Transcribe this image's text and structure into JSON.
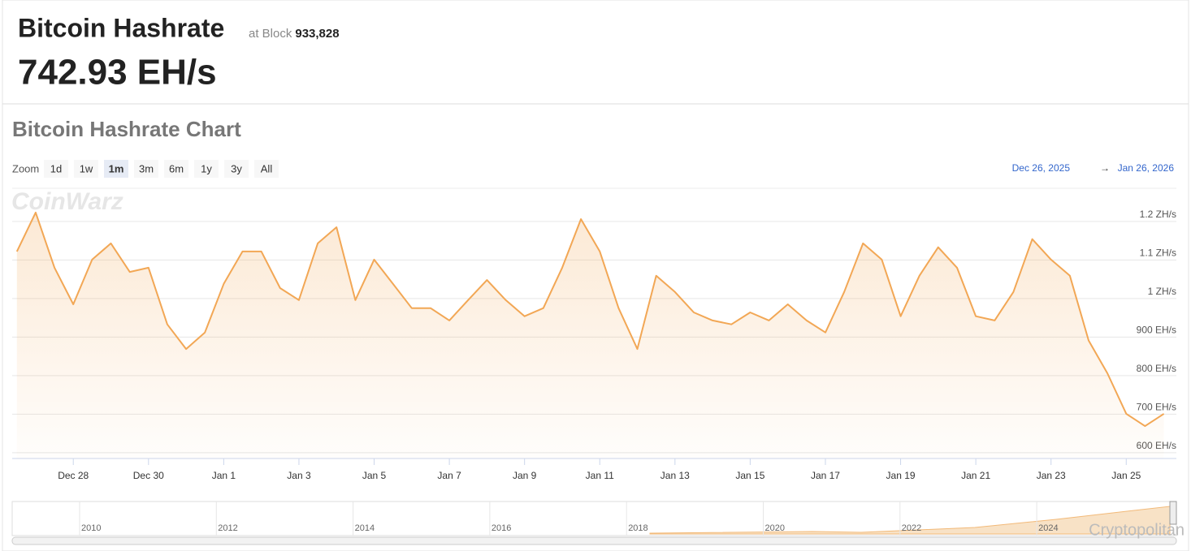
{
  "header": {
    "title": "Bitcoin Hashrate",
    "block_prefix": "at Block",
    "block": "933,828",
    "current": "742.93 EH/s"
  },
  "controls": {
    "zoom_label": "Zoom",
    "zoom_options": [
      "1d",
      "1w",
      "1m",
      "3m",
      "6m",
      "1y",
      "3y",
      "All"
    ],
    "selected": "1m",
    "range_from": "Dec 26, 2025",
    "range_arrow": "→",
    "range_to": "Jan 26, 2026"
  },
  "watermarks": {
    "logo": "CoinWarz",
    "credit": "Cryptopolitan"
  },
  "navigator": {
    "labels": [
      "2010",
      "2012",
      "2014",
      "2016",
      "2018",
      "2020",
      "2022",
      "2024"
    ]
  },
  "chart_data": {
    "type": "area",
    "title": "Bitcoin Hashrate Chart",
    "color": "#f2a755",
    "grid": true,
    "x": [
      "2025-12-26T12:00",
      "2025-12-27T00:00",
      "2025-12-27T12:00",
      "2025-12-28T00:00",
      "2025-12-28T12:00",
      "2025-12-29T00:00",
      "2025-12-29T12:00",
      "2025-12-30T00:00",
      "2025-12-30T12:00",
      "2025-12-31T00:00",
      "2025-12-31T12:00",
      "2026-01-01T00:00",
      "2026-01-01T12:00",
      "2026-01-02T00:00",
      "2026-01-02T12:00",
      "2026-01-03T00:00",
      "2026-01-03T12:00",
      "2026-01-04T00:00",
      "2026-01-04T12:00",
      "2026-01-05T00:00",
      "2026-01-05T12:00",
      "2026-01-06T00:00",
      "2026-01-06T12:00",
      "2026-01-07T00:00",
      "2026-01-07T12:00",
      "2026-01-08T00:00",
      "2026-01-08T12:00",
      "2026-01-09T00:00",
      "2026-01-09T12:00",
      "2026-01-10T00:00",
      "2026-01-10T12:00",
      "2026-01-11T00:00",
      "2026-01-11T12:00",
      "2026-01-12T00:00",
      "2026-01-12T12:00",
      "2026-01-13T00:00",
      "2026-01-13T12:00",
      "2026-01-14T00:00",
      "2026-01-14T12:00",
      "2026-01-15T00:00",
      "2026-01-15T12:00",
      "2026-01-16T00:00",
      "2026-01-16T12:00",
      "2026-01-17T00:00",
      "2026-01-17T12:00",
      "2026-01-18T00:00",
      "2026-01-18T12:00",
      "2026-01-19T00:00",
      "2026-01-19T12:00",
      "2026-01-20T00:00",
      "2026-01-20T12:00",
      "2026-01-21T00:00",
      "2026-01-21T12:00",
      "2026-01-22T00:00",
      "2026-01-22T12:00",
      "2026-01-23T00:00",
      "2026-01-23T12:00",
      "2026-01-24T00:00",
      "2026-01-24T12:00",
      "2026-01-25T00:00",
      "2026-01-25T12:00",
      "2026-01-26T00:00"
    ],
    "values": [
      1122,
      1223,
      1080,
      985,
      1101,
      1143,
      1069,
      1080,
      933,
      869,
      912,
      1038,
      1122,
      1122,
      1027,
      996,
      1143,
      1185,
      996,
      1101,
      1038,
      975,
      975,
      943,
      996,
      1048,
      996,
      954,
      975,
      1080,
      1206,
      1122,
      975,
      869,
      1059,
      1017,
      964,
      943,
      933,
      964,
      943,
      985,
      943,
      912,
      1017,
      1143,
      1101,
      954,
      1059,
      1133,
      1080,
      954,
      943,
      1017,
      1154,
      1101,
      1059,
      891,
      806,
      701,
      669,
      701
    ],
    "xlim": [
      "2025-12-26T09:00",
      "2026-01-26T08:00"
    ],
    "xticks": [
      {
        "value": "2025-12-28T00:00",
        "label": "Dec 28"
      },
      {
        "value": "2025-12-30T00:00",
        "label": "Dec 30"
      },
      {
        "value": "2026-01-01T00:00",
        "label": "Jan 1"
      },
      {
        "value": "2026-01-03T00:00",
        "label": "Jan 3"
      },
      {
        "value": "2026-01-05T00:00",
        "label": "Jan 5"
      },
      {
        "value": "2026-01-07T00:00",
        "label": "Jan 7"
      },
      {
        "value": "2026-01-09T00:00",
        "label": "Jan 9"
      },
      {
        "value": "2026-01-11T00:00",
        "label": "Jan 11"
      },
      {
        "value": "2026-01-13T00:00",
        "label": "Jan 13"
      },
      {
        "value": "2026-01-15T00:00",
        "label": "Jan 15"
      },
      {
        "value": "2026-01-17T00:00",
        "label": "Jan 17"
      },
      {
        "value": "2026-01-19T00:00",
        "label": "Jan 19"
      },
      {
        "value": "2026-01-21T00:00",
        "label": "Jan 21"
      },
      {
        "value": "2026-01-23T00:00",
        "label": "Jan 23"
      },
      {
        "value": "2026-01-25T00:00",
        "label": "Jan 25"
      }
    ],
    "ylim": [
      585,
      1286
    ],
    "yticks": [
      {
        "value": 600,
        "label": "600 EH/s"
      },
      {
        "value": 700,
        "label": "700 EH/s"
      },
      {
        "value": 800,
        "label": "800 EH/s"
      },
      {
        "value": 900,
        "label": "900 EH/s"
      },
      {
        "value": 1000,
        "label": "1 ZH/s"
      },
      {
        "value": 1100,
        "label": "1.1 ZH/s"
      },
      {
        "value": 1200,
        "label": "1.2 ZH/s"
      }
    ]
  }
}
